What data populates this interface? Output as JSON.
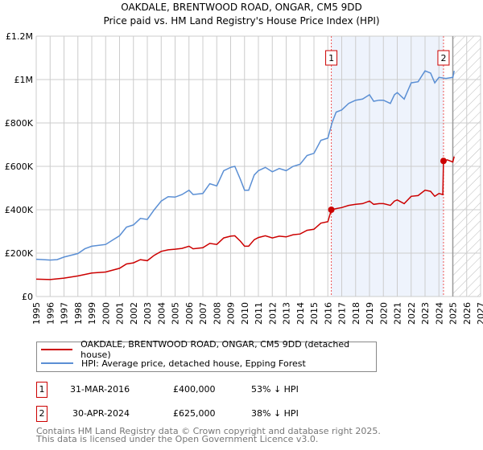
{
  "chart_data": {
    "type": "line",
    "title": "OAKDALE, BRENTWOOD ROAD, ONGAR, CM5 9DD",
    "subtitle": "Price paid vs. HM Land Registry's House Price Index (HPI)",
    "xlim": [
      1995,
      2027
    ],
    "ylim": [
      0,
      1200000
    ],
    "x_ticks": [
      "1995",
      "1996",
      "1997",
      "1998",
      "1999",
      "2000",
      "2001",
      "2002",
      "2003",
      "2004",
      "2005",
      "2006",
      "2007",
      "2008",
      "2009",
      "2010",
      "2011",
      "2012",
      "2013",
      "2014",
      "2015",
      "2016",
      "2017",
      "2018",
      "2019",
      "2020",
      "2021",
      "2022",
      "2023",
      "2024",
      "2025",
      "2026",
      "2027"
    ],
    "y_ticks": [
      {
        "v": 0,
        "label": "£0"
      },
      {
        "v": 200000,
        "label": "£200K"
      },
      {
        "v": 400000,
        "label": "£400K"
      },
      {
        "v": 600000,
        "label": "£600K"
      },
      {
        "v": 800000,
        "label": "£800K"
      },
      {
        "v": 1000000,
        "label": "£1M"
      },
      {
        "v": 1200000,
        "label": "£1.2M"
      }
    ],
    "grid": true,
    "shaded_range": [
      2016.25,
      2024.33
    ],
    "forecast_from": 2025.0,
    "series": [
      {
        "name": "OAKDALE, BRENTWOOD ROAD, ONGAR, CM5 9DD (detached house)",
        "color": "#cc0000",
        "x": [
          1995,
          1996,
          1997,
          1998,
          1999,
          2000,
          2001,
          2001.5,
          2002,
          2002.5,
          2003,
          2003.5,
          2004,
          2004.5,
          2005,
          2005.5,
          2006,
          2006.3,
          2007,
          2007.5,
          2008,
          2008.5,
          2009,
          2009.3,
          2009.7,
          2010,
          2010.3,
          2010.7,
          2011,
          2011.5,
          2012,
          2012.5,
          2013,
          2013.5,
          2014,
          2014.5,
          2015,
          2015.5,
          2016,
          2016.25,
          2016.6,
          2017,
          2017.5,
          2018,
          2018.5,
          2019,
          2019.3,
          2019.7,
          2020,
          2020.5,
          2020.8,
          2021,
          2021.5,
          2022,
          2022.5,
          2023,
          2023.4,
          2023.7,
          2024,
          2024.28,
          2024.33,
          2024.6,
          2025,
          2025.1
        ],
        "y": [
          80000,
          78000,
          85000,
          95000,
          108000,
          113000,
          130000,
          150000,
          155000,
          170000,
          165000,
          190000,
          208000,
          215000,
          218000,
          222000,
          232000,
          220000,
          225000,
          245000,
          240000,
          270000,
          278000,
          280000,
          255000,
          232000,
          232000,
          262000,
          272000,
          280000,
          270000,
          278000,
          275000,
          285000,
          288000,
          305000,
          310000,
          338000,
          345000,
          400000,
          405000,
          410000,
          420000,
          425000,
          428000,
          440000,
          425000,
          428000,
          428000,
          420000,
          440000,
          445000,
          428000,
          462000,
          465000,
          490000,
          485000,
          462000,
          475000,
          470000,
          625000,
          630000,
          620000,
          645000
        ]
      },
      {
        "name": "HPI: Average price, detached house, Epping Forest",
        "color": "#5b8fd4",
        "x": [
          1995,
          1996,
          1996.5,
          1997,
          1998,
          1998.5,
          1999,
          2000,
          2000.5,
          2001,
          2001.5,
          2002,
          2002.5,
          2003,
          2003.5,
          2004,
          2004.5,
          2005,
          2005.5,
          2006,
          2006.3,
          2007,
          2007.5,
          2008,
          2008.5,
          2009,
          2009.3,
          2009.7,
          2010,
          2010.3,
          2010.7,
          2011,
          2011.5,
          2012,
          2012.5,
          2013,
          2013.5,
          2014,
          2014.5,
          2015,
          2015.5,
          2016,
          2016.3,
          2016.6,
          2017,
          2017.5,
          2018,
          2018.5,
          2019,
          2019.3,
          2019.7,
          2020,
          2020.5,
          2020.8,
          2021,
          2021.5,
          2022,
          2022.5,
          2023,
          2023.4,
          2023.7,
          2024,
          2024.5,
          2025,
          2025.1
        ],
        "y": [
          172000,
          168000,
          170000,
          182000,
          198000,
          220000,
          232000,
          240000,
          260000,
          280000,
          320000,
          330000,
          360000,
          355000,
          400000,
          440000,
          460000,
          458000,
          470000,
          490000,
          470000,
          475000,
          520000,
          510000,
          580000,
          595000,
          600000,
          540000,
          490000,
          490000,
          560000,
          580000,
          595000,
          575000,
          590000,
          580000,
          600000,
          610000,
          650000,
          660000,
          720000,
          730000,
          800000,
          850000,
          860000,
          890000,
          905000,
          910000,
          930000,
          900000,
          905000,
          905000,
          890000,
          930000,
          940000,
          910000,
          985000,
          990000,
          1040000,
          1030000,
          985000,
          1010000,
          1005000,
          1010000,
          1040000
        ]
      }
    ],
    "annotations": [
      {
        "label": "1",
        "x": 2016.25,
        "y": 400000
      },
      {
        "label": "2",
        "x": 2024.33,
        "y": 625000
      }
    ]
  },
  "legend": [
    {
      "label": "OAKDALE, BRENTWOOD ROAD, ONGAR, CM5 9DD (detached house)",
      "color": "#cc0000"
    },
    {
      "label": "HPI: Average price, detached house, Epping Forest",
      "color": "#5b8fd4"
    }
  ],
  "transactions": [
    {
      "num": "1",
      "date": "31-MAR-2016",
      "price": "£400,000",
      "hpi": "53% ↓ HPI"
    },
    {
      "num": "2",
      "date": "30-APR-2024",
      "price": "£625,000",
      "hpi": "38% ↓ HPI"
    }
  ],
  "footer": {
    "line1": "Contains HM Land Registry data © Crown copyright and database right 2025.",
    "line2": "This data is licensed under the Open Government Licence v3.0."
  }
}
